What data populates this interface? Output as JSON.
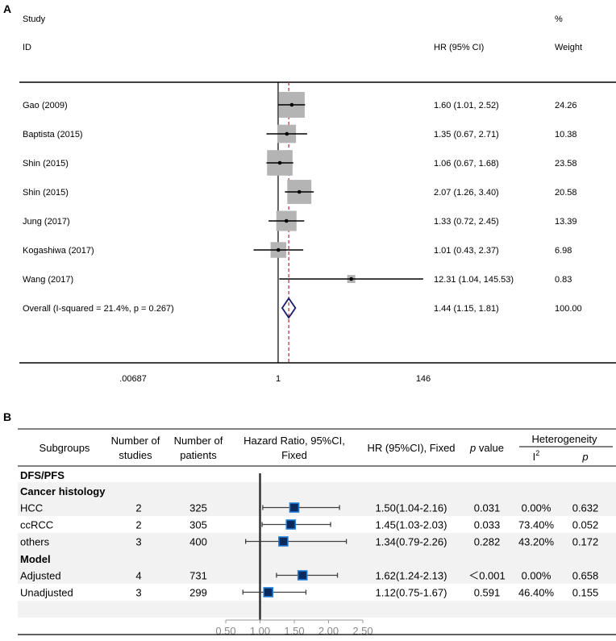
{
  "panel_a": {
    "label": "A",
    "col_study": "Study",
    "col_id": "ID",
    "col_hr": "HR (95% CI)",
    "col_pct": "%",
    "col_weight": "Weight",
    "axis_ticks": [
      ".00687",
      "1",
      "146"
    ]
  },
  "panel_b": {
    "label": "B",
    "headers": {
      "subgroups": "Subgroups",
      "n_studies_1": "Number of",
      "n_studies_2": "studies",
      "n_patients_1": "Number of",
      "n_patients_2": "patients",
      "hr_plot_1": "Hazard Ratio, 95%CI,",
      "hr_plot_2": "Fixed",
      "hr_text": "HR (95%CI), Fixed",
      "pvalue_p": "p",
      "pvalue_rest": " value",
      "heterogeneity": "Heterogeneity",
      "i2_base": "I",
      "i2_sup": "2",
      "het_p": "p"
    },
    "section_dfs": "DFS/PFS",
    "axis_ticks": [
      "0.50",
      "1.00",
      "1.50",
      "2.00",
      "2.50"
    ]
  },
  "chart_data": [
    {
      "type": "forest",
      "panel": "A",
      "x_scale": "log",
      "xlim": [
        0.00687,
        146
      ],
      "null_line": 1,
      "overall_line": 1.44,
      "studies": [
        {
          "id": "Gao (2009)",
          "hr": 1.6,
          "lo": 1.01,
          "hi": 2.52,
          "hr_text": "1.60 (1.01, 2.52)",
          "weight": "24.26"
        },
        {
          "id": "Baptista (2015)",
          "hr": 1.35,
          "lo": 0.67,
          "hi": 2.71,
          "hr_text": "1.35 (0.67, 2.71)",
          "weight": "10.38"
        },
        {
          "id": "Shin (2015)",
          "hr": 1.06,
          "lo": 0.67,
          "hi": 1.68,
          "hr_text": "1.06 (0.67, 1.68)",
          "weight": "23.58"
        },
        {
          "id": "Shin (2015)",
          "hr": 2.07,
          "lo": 1.26,
          "hi": 3.4,
          "hr_text": "2.07 (1.26, 3.40)",
          "weight": "20.58"
        },
        {
          "id": "Jung (2017)",
          "hr": 1.33,
          "lo": 0.72,
          "hi": 2.45,
          "hr_text": "1.33 (0.72, 2.45)",
          "weight": "13.39"
        },
        {
          "id": "Kogashiwa (2017)",
          "hr": 1.01,
          "lo": 0.43,
          "hi": 2.37,
          "hr_text": "1.01 (0.43, 2.37)",
          "weight": "6.98"
        },
        {
          "id": "Wang (2017)",
          "hr": 12.31,
          "lo": 1.04,
          "hi": 145.53,
          "hr_text": "12.31 (1.04, 145.53)",
          "weight": "0.83"
        }
      ],
      "overall": {
        "label": "Overall  (I-squared = 21.4%, p = 0.267)",
        "hr": 1.44,
        "lo": 1.15,
        "hi": 1.81,
        "hr_text": "1.44 (1.15, 1.81)",
        "weight": "100.00"
      }
    },
    {
      "type": "forest",
      "panel": "B",
      "x_scale": "linear",
      "xlim": [
        0.5,
        2.5
      ],
      "null_line": 1,
      "groups": [
        {
          "title": "Cancer histology",
          "rows": [
            {
              "name": "HCC",
              "studies": "2",
              "patients": "325",
              "hr": 1.5,
              "lo": 1.04,
              "hi": 2.16,
              "hr_text": "1.50(1.04-2.16)",
              "p": "0.031",
              "i2": "0.00%",
              "het_p": "0.632"
            },
            {
              "name": "ccRCC",
              "studies": "2",
              "patients": "305",
              "hr": 1.45,
              "lo": 1.03,
              "hi": 2.03,
              "hr_text": "1.45(1.03-2.03)",
              "p": "0.033",
              "i2": "73.40%",
              "het_p": "0.052"
            },
            {
              "name": "others",
              "studies": "3",
              "patients": "400",
              "hr": 1.34,
              "lo": 0.79,
              "hi": 2.26,
              "hr_text": "1.34(0.79-2.26)",
              "p": "0.282",
              "i2": "43.20%",
              "het_p": "0.172"
            }
          ]
        },
        {
          "title": "Model",
          "rows": [
            {
              "name": "Adjusted",
              "studies": "4",
              "patients": "731",
              "hr": 1.62,
              "lo": 1.24,
              "hi": 2.13,
              "hr_text": "1.62(1.24-2.13)",
              "p": "＜0.001",
              "i2": "0.00%",
              "het_p": "0.658"
            },
            {
              "name": "Unadjusted",
              "studies": "3",
              "patients": "299",
              "hr": 1.12,
              "lo": 0.75,
              "hi": 1.67,
              "hr_text": "1.12(0.75-1.67)",
              "p": "0.591",
              "i2": "46.40%",
              "het_p": "0.155"
            }
          ]
        }
      ]
    }
  ]
}
